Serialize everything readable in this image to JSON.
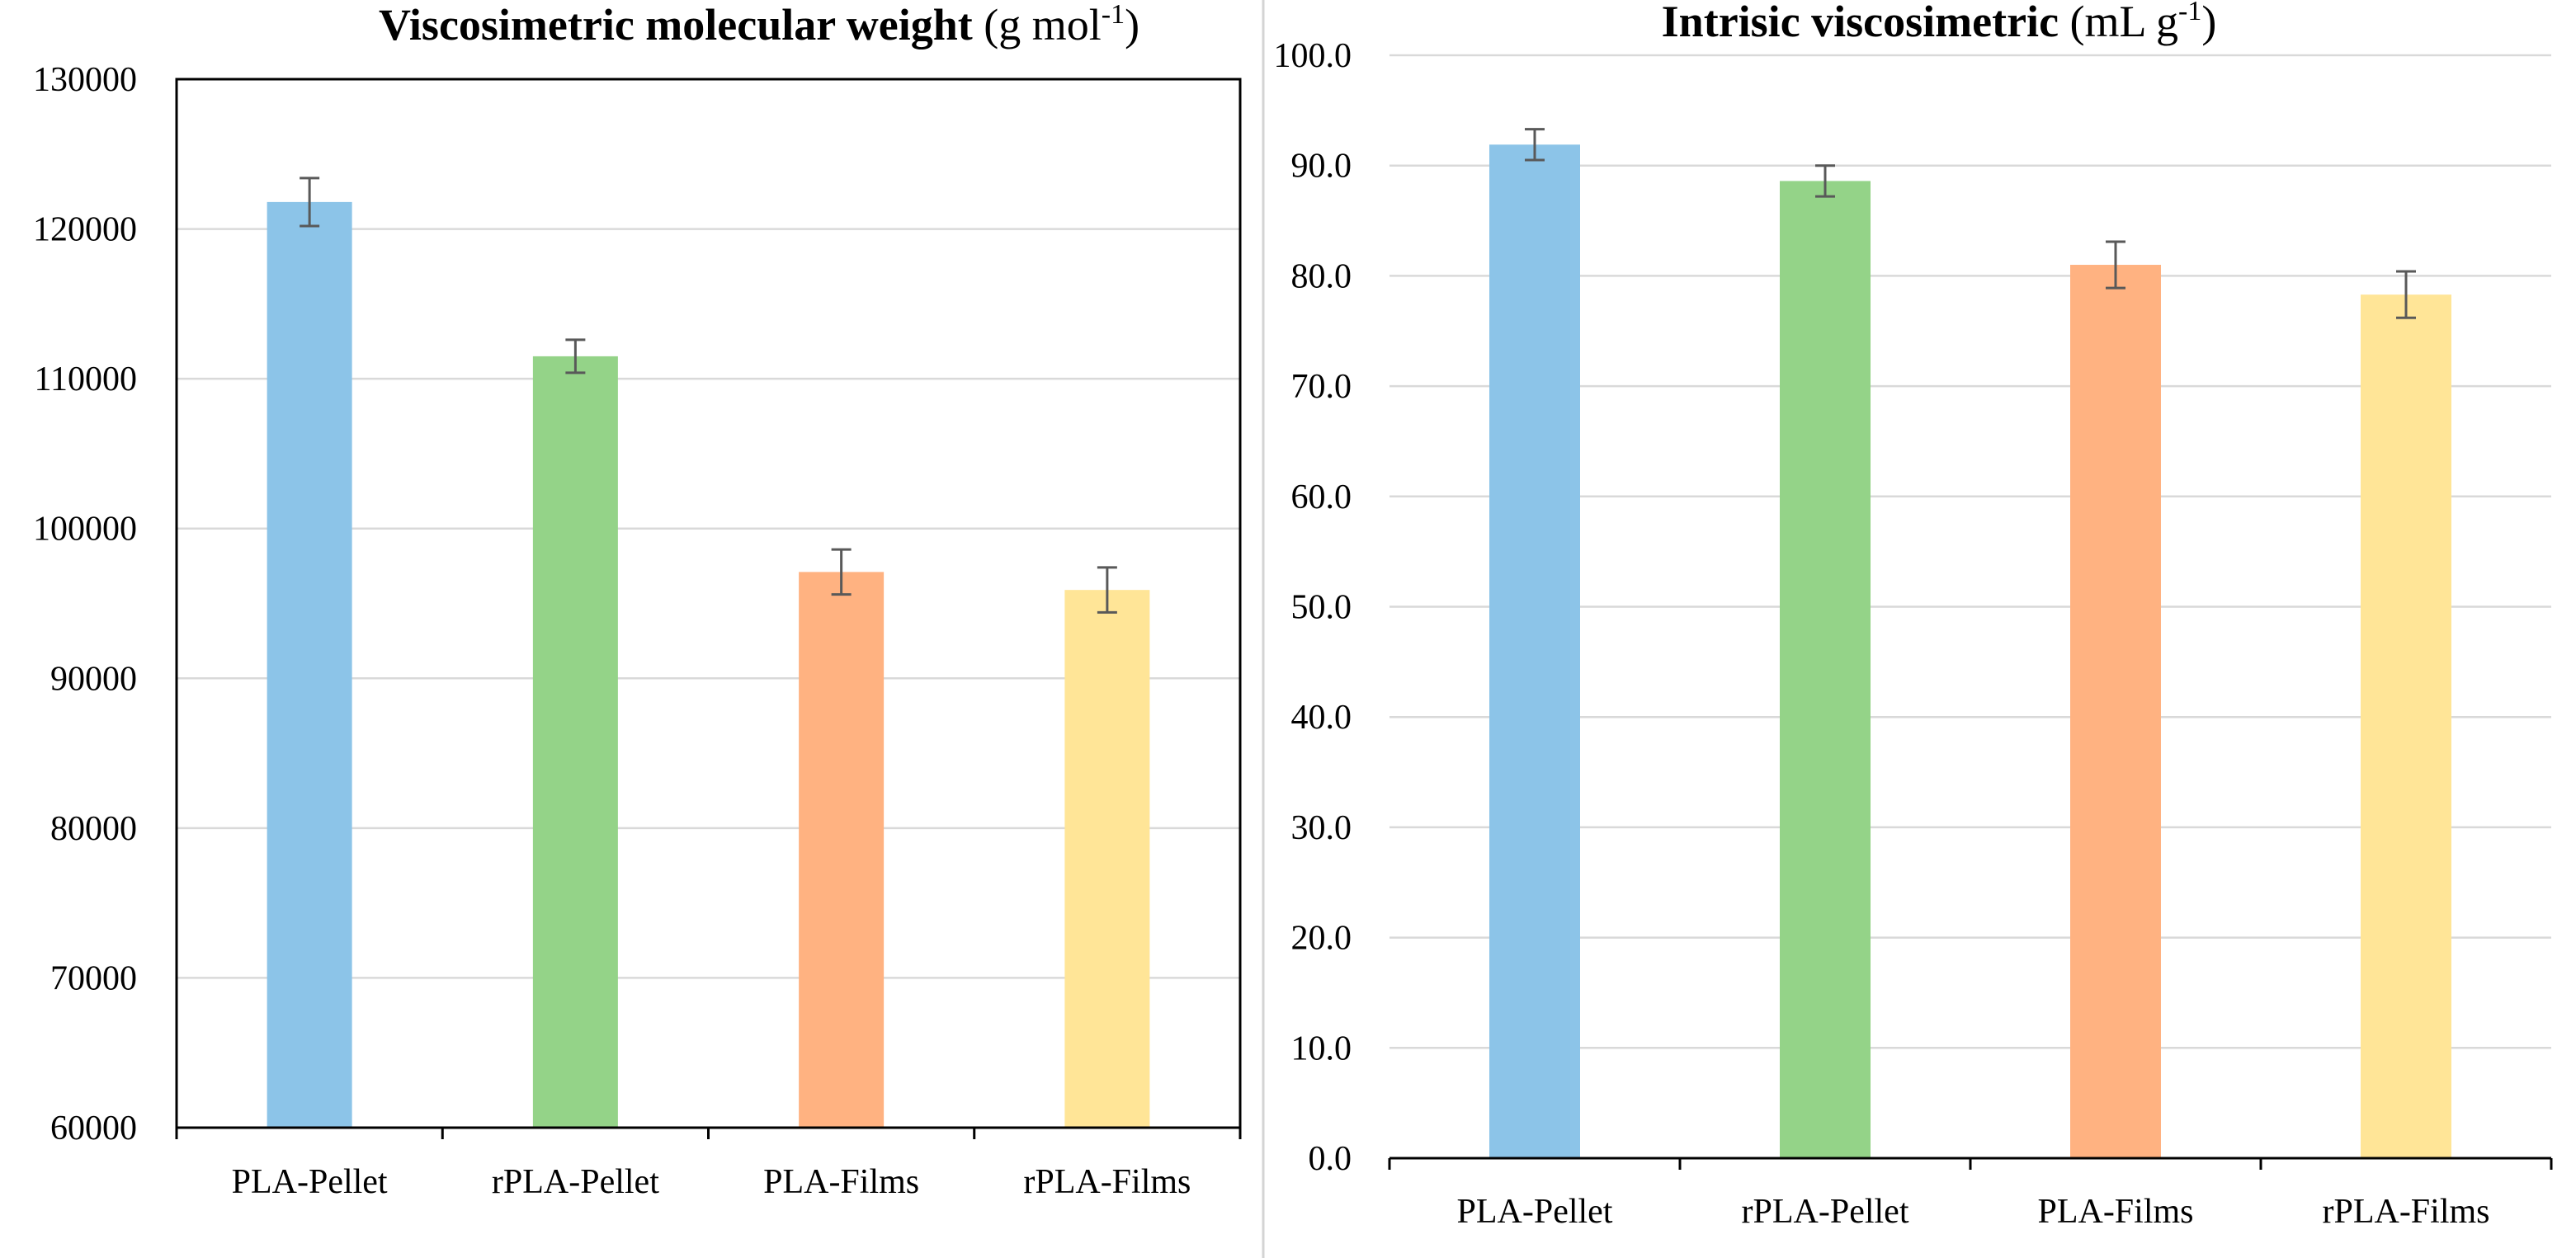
{
  "chart_data": [
    {
      "type": "bar",
      "title": "Viscosimetric molecular weight",
      "title_unit_prefix": "(g mol",
      "title_unit_sup": "-1",
      "title_unit_suffix": ")",
      "categories": [
        "PLA-Pellet",
        "rPLA-Pellet",
        "PLA-Films",
        "rPLA-Films"
      ],
      "values": [
        121800,
        111500,
        97100,
        95900
      ],
      "errors": [
        1600,
        1100,
        1500,
        1500
      ],
      "colors": [
        "#8CC4E8",
        "#94D388",
        "#FFB281",
        "#FFE597"
      ],
      "ylim": [
        60000,
        130000
      ],
      "yticks": [
        "60000",
        "70000",
        "80000",
        "90000",
        "100000",
        "110000",
        "120000",
        "130000"
      ],
      "grid": true,
      "xlabel": "",
      "ylabel": ""
    },
    {
      "type": "bar",
      "title": "Intrisic viscosimetric",
      "title_unit_prefix": "(mL g",
      "title_unit_sup": "-1",
      "title_unit_suffix": ")",
      "categories": [
        "PLA-Pellet",
        "rPLA-Pellet",
        "PLA-Films",
        "rPLA-Films"
      ],
      "values": [
        91.9,
        88.6,
        81.0,
        78.3
      ],
      "errors": [
        1.4,
        1.4,
        2.1,
        2.1
      ],
      "colors": [
        "#8CC4E8",
        "#94D388",
        "#FFB281",
        "#FFE597"
      ],
      "ylim": [
        0,
        100
      ],
      "yticks": [
        "0.0",
        "10.0",
        "20.0",
        "30.0",
        "40.0",
        "50.0",
        "60.0",
        "70.0",
        "80.0",
        "90.0",
        "100.0"
      ],
      "grid": true,
      "xlabel": "",
      "ylabel": ""
    }
  ]
}
